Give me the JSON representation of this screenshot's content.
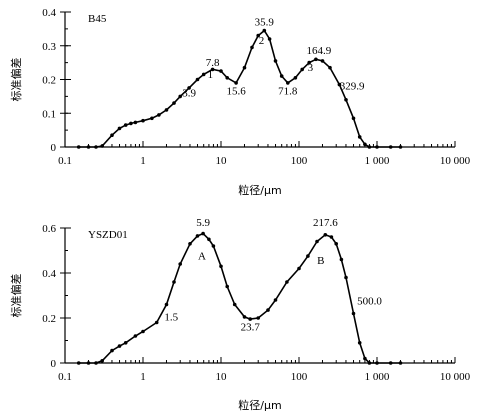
{
  "chart_data": [
    {
      "type": "line",
      "title": "B45",
      "xlabel": "粒径/μm",
      "ylabel": "标准偏差",
      "xscale": "log",
      "xlim": [
        0.1,
        10000
      ],
      "ylim": [
        0,
        0.4
      ],
      "xticks": [
        0.1,
        1,
        10,
        100,
        1000,
        10000
      ],
      "xtick_labels": [
        "0.1",
        "1",
        "10",
        "100",
        "1 000",
        "10 000"
      ],
      "yticks": [
        0,
        0.1,
        0.2,
        0.3,
        0.4
      ],
      "ytick_labels": [
        "0",
        "0.1",
        "0.2",
        "0.3",
        "0.4"
      ],
      "series": [
        {
          "x": [
            0.15,
            0.2,
            0.25,
            0.3,
            0.4,
            0.5,
            0.6,
            0.7,
            0.8,
            1.0,
            1.3,
            1.6,
            2.0,
            2.5,
            3.0,
            3.9,
            5.0,
            6.0,
            7.8,
            10,
            12,
            15.6,
            20,
            25,
            30,
            35.9,
            42,
            50,
            60,
            71.8,
            90,
            110,
            135,
            164.9,
            200,
            250,
            329.9,
            400,
            500,
            600,
            700,
            800,
            1000,
            1500,
            2000
          ],
          "y": [
            0,
            0,
            0,
            0.003,
            0.035,
            0.055,
            0.065,
            0.07,
            0.073,
            0.078,
            0.085,
            0.095,
            0.11,
            0.13,
            0.15,
            0.175,
            0.2,
            0.215,
            0.23,
            0.225,
            0.205,
            0.19,
            0.235,
            0.295,
            0.33,
            0.345,
            0.32,
            0.255,
            0.21,
            0.19,
            0.205,
            0.23,
            0.25,
            0.26,
            0.255,
            0.235,
            0.185,
            0.14,
            0.085,
            0.03,
            0.008,
            0,
            0,
            0,
            0
          ]
        }
      ],
      "annotations": [
        {
          "text": "7.8",
          "x": 7.8,
          "y": 0.24
        },
        {
          "text": "1",
          "x": 7.3,
          "y": 0.205
        },
        {
          "text": "3.9",
          "x": 3.9,
          "y": 0.15
        },
        {
          "text": "35.9",
          "x": 35.9,
          "y": 0.36
        },
        {
          "text": "2",
          "x": 33,
          "y": 0.305
        },
        {
          "text": "15.6",
          "x": 15.6,
          "y": 0.155
        },
        {
          "text": "71.8",
          "x": 71.8,
          "y": 0.155
        },
        {
          "text": "164.9",
          "x": 180,
          "y": 0.275
        },
        {
          "text": "3",
          "x": 140,
          "y": 0.225
        },
        {
          "text": "329.9",
          "x": 480,
          "y": 0.17
        }
      ]
    },
    {
      "type": "line",
      "title": "YSZD01",
      "xlabel": "粒径/μm",
      "ylabel": "标准偏差",
      "xscale": "log",
      "xlim": [
        0.1,
        10000
      ],
      "ylim": [
        0,
        0.6
      ],
      "xticks": [
        0.1,
        1,
        10,
        100,
        1000,
        10000
      ],
      "xtick_labels": [
        "0.1",
        "1",
        "10",
        "100",
        "1 000",
        "10 000"
      ],
      "yticks": [
        0,
        0.2,
        0.4,
        0.6
      ],
      "ytick_labels": [
        "0",
        "0.2",
        "0.4",
        "0.6"
      ],
      "series": [
        {
          "x": [
            0.15,
            0.2,
            0.25,
            0.3,
            0.4,
            0.5,
            0.6,
            0.8,
            1.0,
            1.5,
            2.0,
            2.5,
            3.0,
            4.0,
            5.0,
            5.9,
            7.0,
            8.0,
            10,
            12,
            15,
            20,
            23.7,
            30,
            40,
            50,
            70,
            100,
            130,
            170,
            217.6,
            260,
            300,
            350,
            400,
            500,
            600,
            700,
            800,
            1000,
            1500,
            2000
          ],
          "y": [
            0,
            0,
            0,
            0.01,
            0.055,
            0.075,
            0.09,
            0.12,
            0.14,
            0.18,
            0.26,
            0.36,
            0.44,
            0.53,
            0.565,
            0.575,
            0.55,
            0.52,
            0.43,
            0.34,
            0.26,
            0.205,
            0.195,
            0.2,
            0.235,
            0.28,
            0.36,
            0.42,
            0.475,
            0.54,
            0.57,
            0.56,
            0.53,
            0.46,
            0.38,
            0.22,
            0.09,
            0.02,
            0,
            0,
            0,
            0
          ]
        }
      ],
      "annotations": [
        {
          "text": "5.9",
          "x": 5.9,
          "y": 0.61
        },
        {
          "text": "A",
          "x": 5.7,
          "y": 0.46
        },
        {
          "text": "217.6",
          "x": 217.6,
          "y": 0.61
        },
        {
          "text": "B",
          "x": 190,
          "y": 0.44
        },
        {
          "text": "1.5",
          "x": 2.3,
          "y": 0.19
        },
        {
          "text": "23.7",
          "x": 23.7,
          "y": 0.145
        },
        {
          "text": "500.0",
          "x": 800,
          "y": 0.26
        }
      ]
    }
  ]
}
